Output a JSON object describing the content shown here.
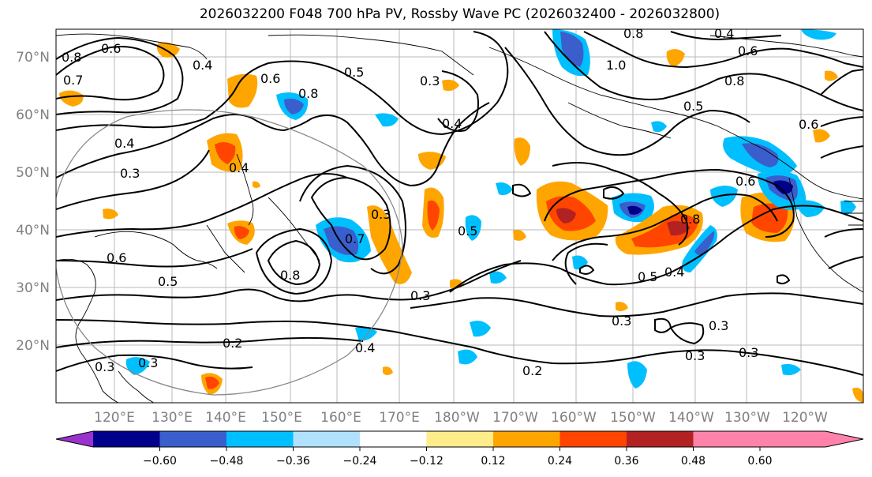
{
  "title": "2026032200 F048 700 hPa PV, Rossby Wave PC (2026032400 - 2026032800)",
  "map": {
    "lat_labels": [
      "70°N",
      "60°N",
      "50°N",
      "40°N",
      "30°N",
      "20°N"
    ],
    "lon_labels": [
      "120°E",
      "130°E",
      "140°E",
      "150°E",
      "160°E",
      "170°E",
      "180°W",
      "170°W",
      "160°W",
      "150°W",
      "140°W",
      "130°W",
      "120°W"
    ],
    "contour_labels": [
      "0.8",
      "0.6",
      "0.4",
      "0.7",
      "0.6",
      "0.8",
      "0.5",
      "0.3",
      "0.4",
      "0.3",
      "0.4",
      "0.4",
      "0.3",
      "0.6",
      "0.5",
      "0.7",
      "0.8",
      "0.3",
      "0.8",
      "0.5",
      "0.5",
      "0.3",
      "0.4",
      "0.2",
      "0.4",
      "0.3",
      "0.2",
      "0.3",
      "0.3",
      "0.3",
      "0.3",
      "0.6",
      "0.8",
      "0.8",
      "0.6",
      "1.0",
      "0.4",
      "0.5",
      "0.6"
    ]
  },
  "colorbar": {
    "ticks": [
      "−0.60",
      "−0.48",
      "−0.36",
      "−0.24",
      "−0.12",
      "0.12",
      "0.24",
      "0.36",
      "0.48",
      "0.60"
    ],
    "colors": [
      "#9a32cd",
      "#00008b",
      "#3a5fcd",
      "#00bfff",
      "#b0e2ff",
      "#ffffff",
      "#ffec8b",
      "#ffa500",
      "#ff4500",
      "#b22222",
      "#ff82ab"
    ]
  }
}
